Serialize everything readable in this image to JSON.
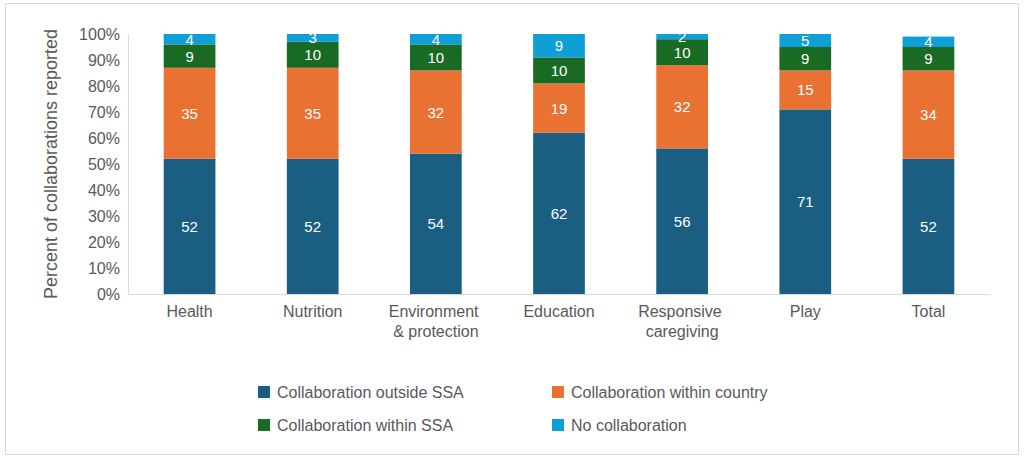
{
  "chart_data": {
    "type": "bar",
    "stacked": true,
    "data_labels": true,
    "grid": false,
    "legend": "bottom",
    "y_label": "Percent of collaborations reported",
    "categories": [
      "Health",
      "Nutrition",
      "Environment & protection",
      "Education",
      "Responsive caregiving",
      "Play",
      "Total"
    ],
    "series": [
      {
        "name": "Collaboration outside SSA",
        "color": "#1a5e82",
        "values": [
          52,
          52,
          54,
          62,
          56,
          71,
          52
        ]
      },
      {
        "name": "Collaboration within country",
        "color": "#e97132",
        "values": [
          35,
          35,
          32,
          19,
          32,
          15,
          34
        ]
      },
      {
        "name": "Collaboration within SSA",
        "color": "#196b24",
        "values": [
          9,
          10,
          10,
          10,
          10,
          9,
          9
        ]
      },
      {
        "name": "No collaboration",
        "color": "#0f9ed5",
        "values": [
          4,
          3,
          4,
          9,
          2,
          5,
          4
        ]
      }
    ],
    "ylim": [
      0,
      100
    ],
    "yticks": [
      {
        "value": 0,
        "label": "0%"
      },
      {
        "value": 10,
        "label": "10%"
      },
      {
        "value": 20,
        "label": "20%"
      },
      {
        "value": 30,
        "label": "30%"
      },
      {
        "value": 40,
        "label": "40%"
      },
      {
        "value": 50,
        "label": "50%"
      },
      {
        "value": 60,
        "label": "60%"
      },
      {
        "value": 70,
        "label": "70%"
      },
      {
        "value": 80,
        "label": "80%"
      },
      {
        "value": 90,
        "label": "90%"
      },
      {
        "value": 100,
        "label": "100%"
      }
    ]
  }
}
